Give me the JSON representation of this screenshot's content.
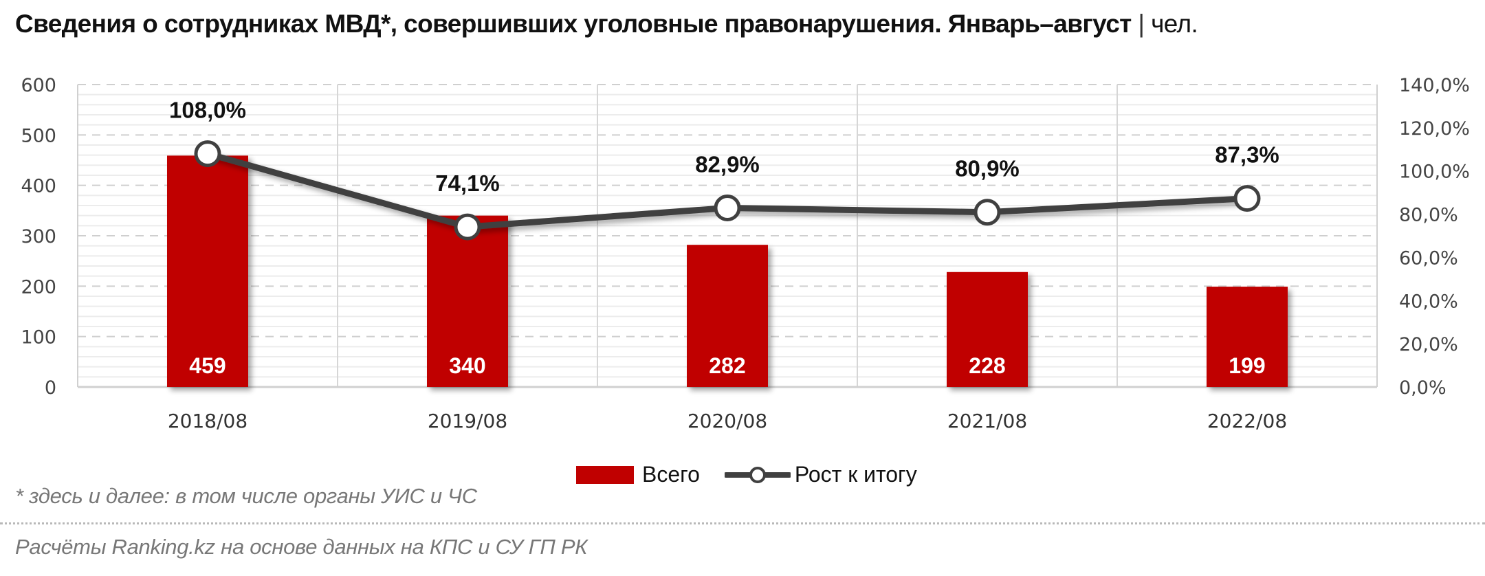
{
  "title": {
    "main": "Сведения о сотрудниках МВД*, совершивших уголовные правонарушения. Январь–август",
    "separator": "|",
    "unit": "чел."
  },
  "legend": {
    "bar_label": "Всего",
    "line_label": "Рост к итогу"
  },
  "footnote": "* здесь и далее: в том числе органы УИС и ЧС",
  "source": "Расчёты Ranking.kz на основе данных на КПС и СУ ГП РК",
  "colors": {
    "bar": "#c00000",
    "line": "#404040",
    "marker_fill": "#ffffff",
    "grid_major": "#cfcfcf",
    "grid_minor": "#ececec"
  },
  "axes": {
    "left_ticks": [
      "0",
      "100",
      "200",
      "300",
      "400",
      "500",
      "600"
    ],
    "right_ticks": [
      "0,0%",
      "20,0%",
      "40,0%",
      "60,0%",
      "80,0%",
      "100,0%",
      "120,0%",
      "140,0%"
    ]
  },
  "chart_data": {
    "type": "bar",
    "title": "Сведения о сотрудниках МВД*, совершивших уголовные правонарушения. Январь–август | чел.",
    "categories": [
      "2018/08",
      "2019/08",
      "2020/08",
      "2021/08",
      "2022/08"
    ],
    "series": [
      {
        "name": "Всего",
        "type": "bar",
        "axis": "left",
        "values": [
          459,
          340,
          282,
          228,
          199
        ],
        "labels": [
          "459",
          "340",
          "282",
          "228",
          "199"
        ]
      },
      {
        "name": "Рост к итогу",
        "type": "line",
        "axis": "right",
        "values": [
          108.0,
          74.1,
          82.9,
          80.9,
          87.3
        ],
        "labels": [
          "108,0%",
          "74,1%",
          "82,9%",
          "80,9%",
          "87,3%"
        ]
      }
    ],
    "xlabel": "",
    "ylabel": "чел.",
    "ylim": [
      0,
      600
    ],
    "y2lim": [
      0,
      140
    ],
    "y_ticks": [
      0,
      100,
      200,
      300,
      400,
      500,
      600
    ],
    "y2_ticks": [
      0,
      20,
      40,
      60,
      80,
      100,
      120,
      140
    ],
    "grid": true,
    "legend_position": "bottom"
  }
}
